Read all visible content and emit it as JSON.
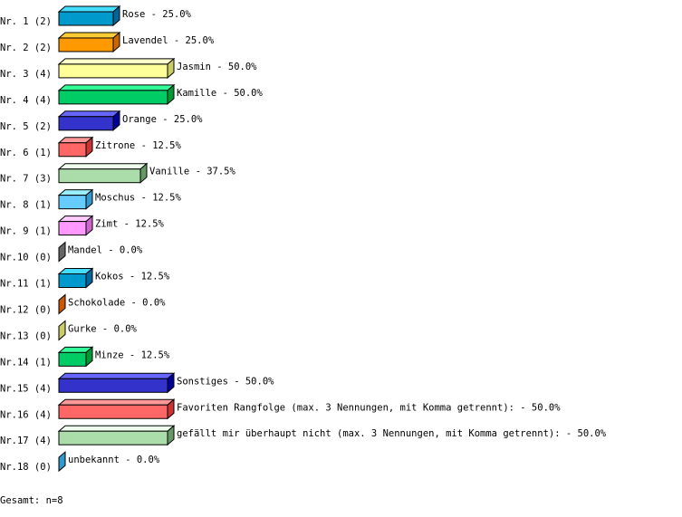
{
  "chart_data": {
    "type": "bar",
    "orientation": "horizontal",
    "style": "3d",
    "value_unit": "%",
    "rows": [
      {
        "rank": "Nr. 1",
        "count": 2,
        "label": "Rose",
        "value": 25.0,
        "colors": [
          "#0099cc",
          "#44ddff",
          "#006699"
        ]
      },
      {
        "rank": "Nr. 2",
        "count": 2,
        "label": "Lavendel",
        "value": 25.0,
        "colors": [
          "#ff9900",
          "#ffcc33",
          "#cc6600"
        ]
      },
      {
        "rank": "Nr. 3",
        "count": 4,
        "label": "Jasmin",
        "value": 50.0,
        "colors": [
          "#ffff99",
          "#ffffcc",
          "#cccc66"
        ]
      },
      {
        "rank": "Nr. 4",
        "count": 4,
        "label": "Kamille",
        "value": 50.0,
        "colors": [
          "#00cc66",
          "#33ff99",
          "#009933"
        ]
      },
      {
        "rank": "Nr. 5",
        "count": 2,
        "label": "Orange",
        "value": 25.0,
        "colors": [
          "#3333cc",
          "#6666ff",
          "#000099"
        ]
      },
      {
        "rank": "Nr. 6",
        "count": 1,
        "label": "Zitrone",
        "value": 12.5,
        "colors": [
          "#ff6666",
          "#ff9999",
          "#cc3333"
        ]
      },
      {
        "rank": "Nr. 7",
        "count": 3,
        "label": "Vanille",
        "value": 37.5,
        "colors": [
          "#aaddaa",
          "#eeffee",
          "#669966"
        ]
      },
      {
        "rank": "Nr. 8",
        "count": 1,
        "label": "Moschus",
        "value": 12.5,
        "colors": [
          "#66ccff",
          "#99eeff",
          "#3399cc"
        ]
      },
      {
        "rank": "Nr. 9",
        "count": 1,
        "label": "Zimt",
        "value": 12.5,
        "colors": [
          "#ff99ff",
          "#ffccff",
          "#cc66cc"
        ]
      },
      {
        "rank": "Nr.10",
        "count": 0,
        "label": "Mandel",
        "value": 0.0,
        "colors": [
          "#999999",
          "#cccccc",
          "#666666"
        ]
      },
      {
        "rank": "Nr.11",
        "count": 1,
        "label": "Kokos",
        "value": 12.5,
        "colors": [
          "#0099cc",
          "#44ddff",
          "#006699"
        ]
      },
      {
        "rank": "Nr.12",
        "count": 0,
        "label": "Schokolade",
        "value": 0.0,
        "colors": [
          "#ff9900",
          "#ffcc33",
          "#cc5500"
        ]
      },
      {
        "rank": "Nr.13",
        "count": 0,
        "label": "Gurke",
        "value": 0.0,
        "colors": [
          "#ffff99",
          "#ffffcc",
          "#cccc66"
        ]
      },
      {
        "rank": "Nr.14",
        "count": 1,
        "label": "Minze",
        "value": 12.5,
        "colors": [
          "#00cc66",
          "#33ff99",
          "#009933"
        ]
      },
      {
        "rank": "Nr.15",
        "count": 4,
        "label": "Sonstiges",
        "value": 50.0,
        "colors": [
          "#3333cc",
          "#6666ff",
          "#000099"
        ]
      },
      {
        "rank": "Nr.16",
        "count": 4,
        "label": "Favoriten Rangfolge (max. 3 Nennungen, mit Komma getrennt):",
        "value": 50.0,
        "colors": [
          "#ff6666",
          "#ff9999",
          "#cc3333"
        ]
      },
      {
        "rank": "Nr.17",
        "count": 4,
        "label": "gefällt mir überhaupt nicht (max. 3 Nennungen, mit Komma getrennt):",
        "value": 50.0,
        "colors": [
          "#aaddaa",
          "#eeffee",
          "#669966"
        ]
      },
      {
        "rank": "Nr.18",
        "count": 0,
        "label": "unbekannt",
        "value": 0.0,
        "colors": [
          "#66ccff",
          "#99eeff",
          "#3399cc"
        ]
      }
    ],
    "total_label": "Gesamt: n=8"
  }
}
